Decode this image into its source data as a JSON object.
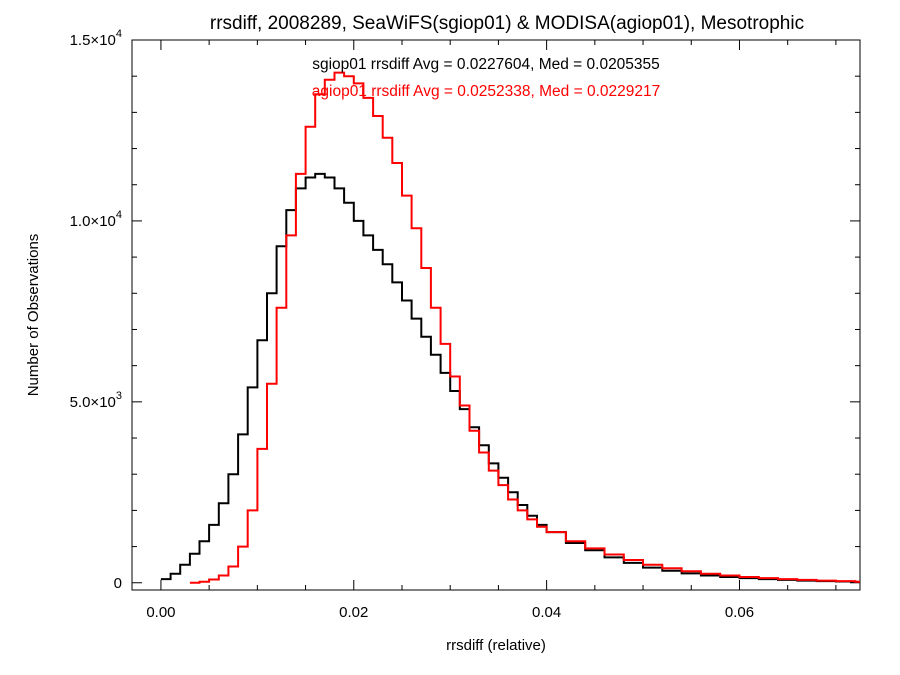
{
  "chart_data": {
    "type": "line",
    "title": "rrsdiff, 2008289, SeaWiFS(sgiop01) & MODISA(agiop01), Mesotrophic",
    "xlabel": "rrsdiff (relative)",
    "ylabel": "Number of Observations",
    "xlim": [
      -0.003,
      0.0725
    ],
    "ylim": [
      -200,
      15000
    ],
    "x_ticks": [
      {
        "value": 0.0,
        "label": "0.00"
      },
      {
        "value": 0.02,
        "label": "0.02"
      },
      {
        "value": 0.04,
        "label": "0.04"
      },
      {
        "value": 0.06,
        "label": "0.06"
      }
    ],
    "y_ticks": [
      {
        "value": 0,
        "mantissa": "0",
        "exp": ""
      },
      {
        "value": 5000,
        "mantissa": "5.0×10",
        "exp": "3"
      },
      {
        "value": 10000,
        "mantissa": "1.0×10",
        "exp": "4"
      },
      {
        "value": 15000,
        "mantissa": "1.5×10",
        "exp": "4"
      }
    ],
    "grid": false,
    "annotations": [
      {
        "text": "sgiop01 rrsdiff Avg = 0.0227604, Med = 0.0205355",
        "color": "#000000"
      },
      {
        "text": "agiop01 rrsdiff Avg = 0.0252338, Med = 0.0229217",
        "color": "#ff0000"
      }
    ],
    "series": [
      {
        "color": "#000000",
        "x": [
          0.0,
          0.001,
          0.002,
          0.003,
          0.004,
          0.005,
          0.006,
          0.007,
          0.008,
          0.009,
          0.01,
          0.011,
          0.012,
          0.013,
          0.014,
          0.015,
          0.016,
          0.017,
          0.018,
          0.019,
          0.02,
          0.021,
          0.022,
          0.023,
          0.024,
          0.025,
          0.026,
          0.027,
          0.028,
          0.029,
          0.03,
          0.031,
          0.032,
          0.033,
          0.034,
          0.035,
          0.036,
          0.037,
          0.038,
          0.039,
          0.04,
          0.042,
          0.044,
          0.046,
          0.048,
          0.05,
          0.052,
          0.054,
          0.056,
          0.058,
          0.06,
          0.062,
          0.064,
          0.066,
          0.068,
          0.07,
          0.072
        ],
        "values": [
          100,
          250,
          500,
          800,
          1150,
          1600,
          2200,
          3000,
          4100,
          5400,
          6700,
          8000,
          9300,
          10300,
          10900,
          11200,
          11300,
          11200,
          10900,
          10500,
          10000,
          9600,
          9200,
          8800,
          8300,
          7800,
          7300,
          6800,
          6300,
          5800,
          5300,
          4800,
          4300,
          3800,
          3300,
          2900,
          2500,
          2150,
          1850,
          1600,
          1400,
          1100,
          900,
          700,
          550,
          420,
          330,
          260,
          200,
          160,
          130,
          100,
          80,
          60,
          45,
          35,
          25
        ]
      },
      {
        "color": "#ff0000",
        "x": [
          0.003,
          0.004,
          0.005,
          0.006,
          0.007,
          0.008,
          0.009,
          0.01,
          0.011,
          0.012,
          0.013,
          0.014,
          0.015,
          0.016,
          0.017,
          0.018,
          0.019,
          0.02,
          0.021,
          0.022,
          0.023,
          0.024,
          0.025,
          0.026,
          0.027,
          0.028,
          0.029,
          0.03,
          0.031,
          0.032,
          0.033,
          0.034,
          0.035,
          0.036,
          0.037,
          0.038,
          0.039,
          0.04,
          0.042,
          0.044,
          0.046,
          0.048,
          0.05,
          0.052,
          0.054,
          0.056,
          0.058,
          0.06,
          0.062,
          0.064,
          0.066,
          0.068,
          0.07,
          0.072
        ],
        "values": [
          0,
          30,
          90,
          200,
          450,
          1000,
          2000,
          3700,
          5500,
          7600,
          9600,
          11300,
          12600,
          13500,
          13900,
          14100,
          14000,
          13800,
          13400,
          12900,
          12300,
          11600,
          10700,
          9800,
          8700,
          7600,
          6600,
          5700,
          4900,
          4200,
          3600,
          3100,
          2700,
          2300,
          2000,
          1750,
          1550,
          1400,
          1150,
          950,
          780,
          630,
          500,
          400,
          320,
          250,
          200,
          160,
          130,
          100,
          80,
          60,
          45,
          30
        ]
      }
    ]
  }
}
